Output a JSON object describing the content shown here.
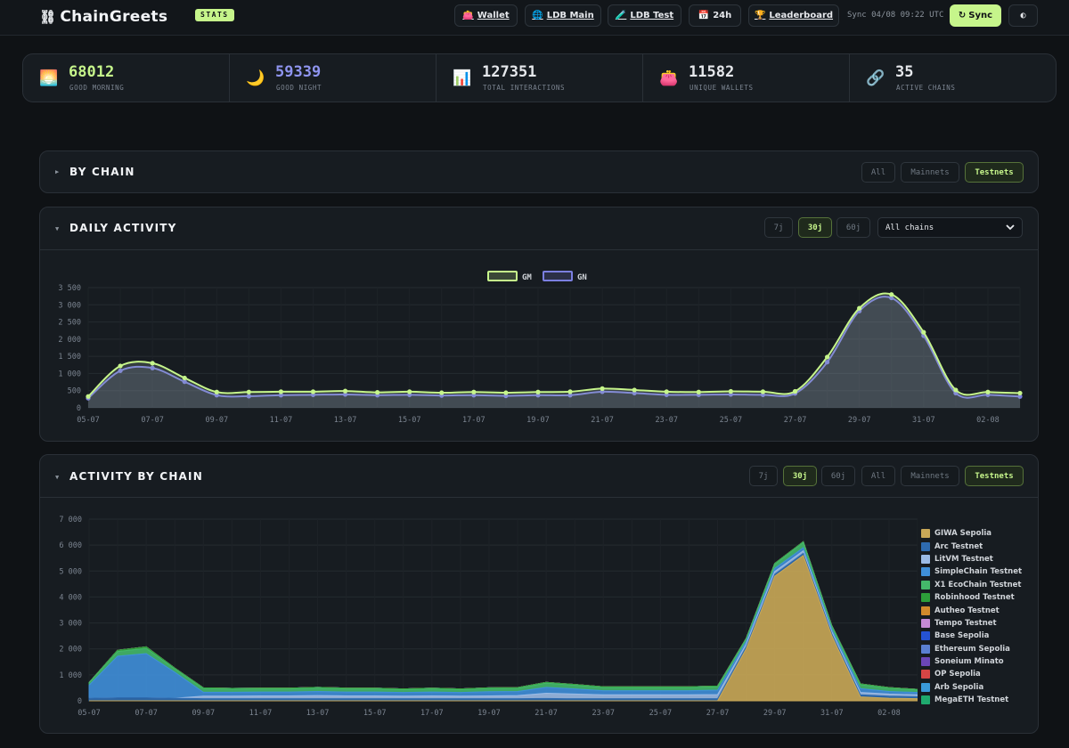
{
  "header": {
    "logo": "ChainGreets",
    "logo_mark": "⛓",
    "badge": "STATS",
    "nav": [
      {
        "label": "Wallet",
        "icon": "👛"
      },
      {
        "label": "LDB Main",
        "icon": "🌐"
      },
      {
        "label": "LDB Test",
        "icon": "🧪"
      },
      {
        "label": "24h",
        "icon": "📅"
      },
      {
        "label": "Leaderboard",
        "icon": "🏆"
      }
    ],
    "sync_status": "Sync 04/08 09:22 UTC",
    "sync_button": "Sync",
    "sync_icon": "↻",
    "theme_icon": "◐"
  },
  "stats": [
    {
      "icon": "🌅",
      "value": "68012",
      "label": "GOOD MORNING",
      "color": "#c6f58b"
    },
    {
      "icon": "🌙",
      "value": "59339",
      "label": "GOOD NIGHT",
      "color": "#8f95f0"
    },
    {
      "icon": "📊",
      "value": "127351",
      "label": "TOTAL INTERACTIONS",
      "color": "#e6e8ec"
    },
    {
      "icon": "👛",
      "value": "11582",
      "label": "UNIQUE WALLETS",
      "color": "#e6e8ec"
    },
    {
      "icon": "🔗",
      "value": "35",
      "label": "ACTIVE CHAINS",
      "color": "#e6e8ec"
    }
  ],
  "by_chain": {
    "caret": "▶",
    "title": "BY CHAIN",
    "filters": [
      "All",
      "Mainnets",
      "Testnets"
    ],
    "active_filter": "Testnets"
  },
  "daily": {
    "caret": "▼",
    "title": "DAILY ACTIVITY",
    "ranges": [
      "7j",
      "30j",
      "60j"
    ],
    "active_range": "30j",
    "chain_select": "All chains",
    "select_icon": "chevron-down"
  },
  "by_chain_activity": {
    "caret": "▼",
    "title": "ACTIVITY BY CHAIN",
    "ranges": [
      "7j",
      "30j",
      "60j"
    ],
    "active_range": "30j",
    "filters": [
      "All",
      "Mainnets",
      "Testnets"
    ],
    "active_filter": "Testnets"
  },
  "chart_data": [
    {
      "type": "area",
      "x": [
        "05-07",
        "06-07",
        "07-07",
        "08-07",
        "09-07",
        "10-07",
        "11-07",
        "12-07",
        "13-07",
        "14-07",
        "15-07",
        "16-07",
        "17-07",
        "18-07",
        "19-07",
        "20-07",
        "21-07",
        "22-07",
        "23-07",
        "24-07",
        "25-07",
        "26-07",
        "27-07",
        "28-07",
        "29-07",
        "30-07",
        "31-07",
        "01-08",
        "02-08",
        "03-08"
      ],
      "x_ticks": [
        "05-07",
        "07-07",
        "09-07",
        "11-07",
        "13-07",
        "15-07",
        "17-07",
        "19-07",
        "21-07",
        "23-07",
        "25-07",
        "27-07",
        "29-07",
        "31-07",
        "02-08"
      ],
      "y_ticks": [
        "0",
        "500",
        "1 000",
        "1 500",
        "2 000",
        "2 500",
        "3 000",
        "3 500"
      ],
      "ylim": [
        0,
        3500
      ],
      "grid": true,
      "legend_position": "top-center",
      "series": [
        {
          "name": "GM",
          "color": "#c6f58b",
          "values": [
            330,
            1220,
            1300,
            870,
            460,
            460,
            470,
            470,
            490,
            450,
            470,
            440,
            460,
            440,
            460,
            470,
            560,
            520,
            470,
            460,
            480,
            470,
            480,
            1480,
            2900,
            3300,
            2200,
            520,
            460,
            430
          ]
        },
        {
          "name": "GN",
          "color": "#7b7fe0",
          "values": [
            280,
            1080,
            1160,
            760,
            370,
            340,
            370,
            380,
            390,
            370,
            380,
            360,
            370,
            350,
            370,
            370,
            470,
            430,
            380,
            380,
            390,
            380,
            420,
            1330,
            2820,
            3200,
            2100,
            430,
            380,
            330
          ]
        }
      ]
    },
    {
      "type": "area",
      "stacked": true,
      "x": [
        "05-07",
        "06-07",
        "07-07",
        "08-07",
        "09-07",
        "10-07",
        "11-07",
        "12-07",
        "13-07",
        "14-07",
        "15-07",
        "16-07",
        "17-07",
        "18-07",
        "19-07",
        "20-07",
        "21-07",
        "22-07",
        "23-07",
        "24-07",
        "25-07",
        "26-07",
        "27-07",
        "28-07",
        "29-07",
        "30-07",
        "31-07",
        "01-08",
        "02-08",
        "03-08"
      ],
      "x_ticks": [
        "05-07",
        "07-07",
        "09-07",
        "11-07",
        "13-07",
        "15-07",
        "17-07",
        "19-07",
        "21-07",
        "23-07",
        "25-07",
        "27-07",
        "29-07",
        "31-07",
        "02-08"
      ],
      "y_ticks": [
        "0",
        "1 000",
        "2 000",
        "3 000",
        "4 000",
        "5 000",
        "6 000",
        "7 000"
      ],
      "ylim": [
        0,
        7000
      ],
      "grid": true,
      "legend_position": "right",
      "series": [
        {
          "name": "GIWA Sepolia",
          "color": "#c9a857",
          "values": [
            0,
            0,
            0,
            0,
            0,
            0,
            0,
            0,
            0,
            0,
            0,
            0,
            0,
            0,
            0,
            0,
            0,
            0,
            0,
            0,
            0,
            0,
            0,
            2000,
            4800,
            5600,
            2500,
            150,
            100,
            80
          ]
        },
        {
          "name": "Arc Testnet",
          "color": "#2e6bb0",
          "values": [
            100,
            120,
            120,
            100,
            80,
            80,
            80,
            80,
            80,
            80,
            80,
            80,
            80,
            80,
            80,
            80,
            90,
            80,
            80,
            80,
            80,
            80,
            80,
            80,
            80,
            80,
            80,
            80,
            80,
            80
          ]
        },
        {
          "name": "LitVM Testnet",
          "color": "#9bbbe6",
          "values": [
            0,
            0,
            0,
            0,
            100,
            100,
            110,
            110,
            120,
            110,
            110,
            100,
            110,
            100,
            110,
            120,
            200,
            180,
            150,
            150,
            150,
            150,
            160,
            100,
            100,
            100,
            80,
            90,
            80,
            70
          ]
        },
        {
          "name": "SimpleChain Testnet",
          "color": "#3f8fd9",
          "values": [
            500,
            1600,
            1700,
            1000,
            150,
            150,
            150,
            150,
            160,
            150,
            150,
            140,
            150,
            140,
            160,
            160,
            230,
            200,
            160,
            160,
            160,
            160,
            170,
            100,
            120,
            120,
            90,
            150,
            100,
            90
          ]
        },
        {
          "name": "X1 EcoChain Testnet",
          "color": "#44b86a",
          "values": [
            100,
            180,
            200,
            130,
            140,
            120,
            120,
            120,
            130,
            120,
            120,
            110,
            120,
            110,
            120,
            120,
            160,
            140,
            120,
            120,
            120,
            120,
            130,
            100,
            160,
            200,
            120,
            150,
            120,
            100
          ]
        },
        {
          "name": "Robinhood Testnet",
          "color": "#2d9e3a",
          "values": [
            0,
            50,
            60,
            30,
            30,
            30,
            30,
            30,
            30,
            30,
            30,
            30,
            30,
            30,
            30,
            30,
            30,
            30,
            30,
            30,
            30,
            30,
            30,
            20,
            30,
            30,
            20,
            30,
            30,
            20
          ]
        },
        {
          "name": "Autheo Testnet",
          "color": "#d28a2c",
          "values": [
            0,
            0,
            0,
            0,
            0,
            0,
            0,
            0,
            0,
            0,
            0,
            0,
            0,
            0,
            0,
            0,
            0,
            0,
            0,
            0,
            0,
            0,
            0,
            0,
            0,
            0,
            0,
            0,
            0,
            0
          ]
        },
        {
          "name": "Tempo Testnet",
          "color": "#c58ad6",
          "values": [
            0,
            0,
            0,
            0,
            0,
            0,
            0,
            0,
            0,
            0,
            0,
            0,
            0,
            0,
            0,
            0,
            0,
            0,
            0,
            0,
            0,
            0,
            0,
            0,
            0,
            0,
            0,
            0,
            0,
            0
          ]
        },
        {
          "name": "Base Sepolia",
          "color": "#2553d4",
          "values": [
            0,
            0,
            0,
            0,
            0,
            0,
            0,
            0,
            0,
            0,
            0,
            0,
            0,
            0,
            0,
            0,
            0,
            0,
            0,
            0,
            0,
            0,
            0,
            0,
            0,
            0,
            0,
            0,
            0,
            0
          ]
        },
        {
          "name": "Ethereum Sepolia",
          "color": "#5a7fd1",
          "values": [
            0,
            0,
            0,
            0,
            0,
            0,
            0,
            0,
            0,
            0,
            0,
            0,
            0,
            0,
            0,
            0,
            0,
            0,
            0,
            0,
            0,
            0,
            0,
            0,
            0,
            0,
            0,
            0,
            0,
            0
          ]
        },
        {
          "name": "Soneium Minato",
          "color": "#6b46b8",
          "values": [
            0,
            0,
            0,
            0,
            0,
            0,
            0,
            0,
            0,
            0,
            0,
            0,
            0,
            0,
            0,
            0,
            0,
            0,
            0,
            0,
            0,
            0,
            0,
            0,
            0,
            0,
            0,
            0,
            0,
            0
          ]
        },
        {
          "name": "OP Sepolia",
          "color": "#d64545",
          "values": [
            0,
            0,
            0,
            0,
            0,
            0,
            0,
            0,
            0,
            0,
            0,
            0,
            0,
            0,
            0,
            0,
            0,
            0,
            0,
            0,
            0,
            0,
            0,
            0,
            0,
            0,
            0,
            0,
            0,
            0
          ]
        },
        {
          "name": "Arb Sepolia",
          "color": "#3a9ad9",
          "values": [
            0,
            0,
            0,
            0,
            0,
            0,
            0,
            0,
            0,
            0,
            0,
            0,
            0,
            0,
            0,
            0,
            0,
            0,
            0,
            0,
            0,
            0,
            0,
            0,
            0,
            0,
            0,
            0,
            0,
            0
          ]
        },
        {
          "name": "MegaETH Testnet",
          "color": "#1faa6e",
          "values": [
            0,
            0,
            0,
            0,
            0,
            0,
            0,
            0,
            0,
            0,
            0,
            0,
            0,
            0,
            0,
            0,
            0,
            0,
            0,
            0,
            0,
            0,
            0,
            0,
            0,
            0,
            0,
            0,
            0,
            0
          ]
        }
      ]
    }
  ]
}
